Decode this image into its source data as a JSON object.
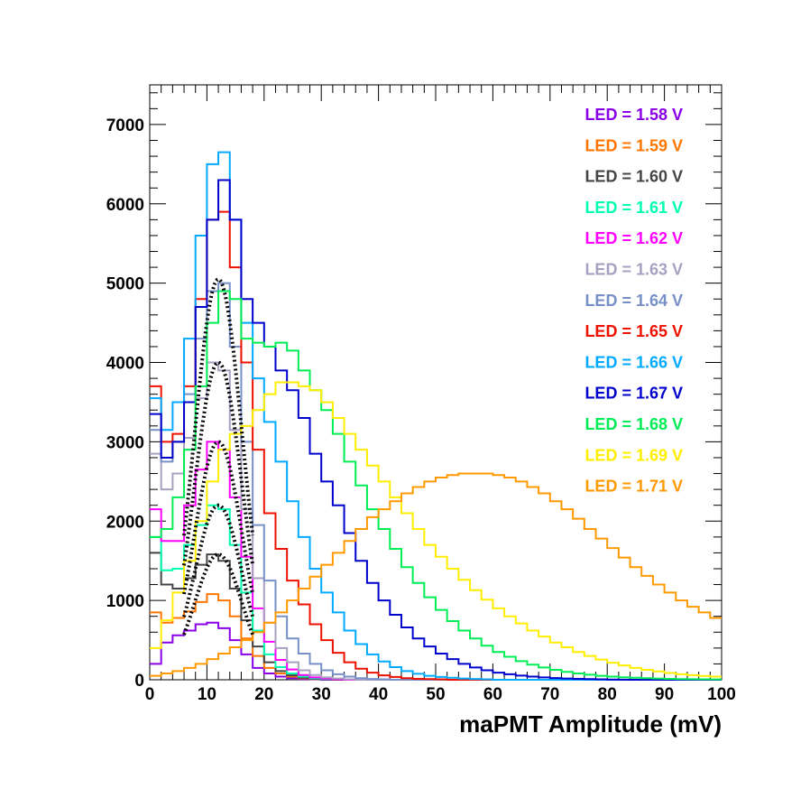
{
  "chart_data": {
    "type": "line",
    "title": "",
    "xlabel": "maPMT Amplitude (mV)",
    "ylabel": "",
    "xlim": [
      0,
      100
    ],
    "ylim": [
      0,
      7500
    ],
    "x_ticks": [
      0,
      10,
      20,
      30,
      40,
      50,
      60,
      70,
      80,
      90,
      100
    ],
    "y_ticks": [
      0,
      1000,
      2000,
      3000,
      4000,
      5000,
      6000,
      7000
    ],
    "grid": false,
    "legend_position": "top-right",
    "x": [
      1,
      3,
      5,
      7,
      9,
      11,
      13,
      15,
      17,
      19,
      21,
      23,
      25,
      27,
      29,
      31,
      33,
      35,
      37,
      39,
      41,
      43,
      45,
      47,
      49,
      51,
      53,
      55,
      57,
      59,
      61,
      63,
      65,
      67,
      69,
      71,
      73,
      75,
      77,
      79,
      81,
      83,
      85,
      87,
      89,
      91,
      93,
      95,
      97,
      99
    ],
    "series": [
      {
        "name": "LED = 1.58 V",
        "color": "#8a00e6",
        "values": [
          200,
          470,
          560,
          620,
          700,
          720,
          650,
          500,
          320,
          150,
          80,
          40,
          20,
          10,
          5,
          0,
          0,
          0,
          0,
          0,
          0,
          0,
          0,
          0,
          0,
          0,
          0,
          0,
          0,
          0,
          0,
          0,
          0,
          0,
          0,
          0,
          0,
          0,
          0,
          0,
          0,
          0,
          0,
          0,
          0,
          0,
          0,
          0,
          0,
          0
        ]
      },
      {
        "name": "LED = 1.59 V",
        "color": "#ff7700",
        "values": [
          850,
          720,
          780,
          860,
          980,
          1080,
          1000,
          800,
          520,
          300,
          150,
          80,
          40,
          20,
          10,
          5,
          0,
          0,
          0,
          0,
          0,
          0,
          0,
          0,
          0,
          0,
          0,
          0,
          0,
          0,
          0,
          0,
          0,
          0,
          0,
          0,
          0,
          0,
          0,
          0,
          0,
          0,
          0,
          0,
          0,
          0,
          0,
          0,
          0,
          0
        ]
      },
      {
        "name": "LED = 1.60 V",
        "color": "#444444",
        "values": [
          1600,
          1200,
          1150,
          1280,
          1450,
          1580,
          1500,
          1150,
          750,
          420,
          220,
          110,
          55,
          25,
          10,
          5,
          0,
          0,
          0,
          0,
          0,
          0,
          0,
          0,
          0,
          0,
          0,
          0,
          0,
          0,
          0,
          0,
          0,
          0,
          0,
          0,
          0,
          0,
          0,
          0,
          0,
          0,
          0,
          0,
          0,
          0,
          0,
          0,
          0,
          0
        ]
      },
      {
        "name": "LED = 1.61 V",
        "color": "#00ffb0",
        "values": [
          1800,
          1380,
          1400,
          1700,
          1950,
          2200,
          2150,
          1700,
          1100,
          620,
          320,
          160,
          80,
          40,
          20,
          10,
          5,
          0,
          0,
          0,
          0,
          0,
          0,
          0,
          0,
          0,
          0,
          0,
          0,
          0,
          0,
          0,
          0,
          0,
          0,
          0,
          0,
          0,
          0,
          0,
          0,
          0,
          0,
          0,
          0,
          0,
          0,
          0,
          0,
          0
        ]
      },
      {
        "name": "LED = 1.62 V",
        "color": "#ff00ff",
        "values": [
          2150,
          1750,
          1750,
          2200,
          2650,
          3000,
          2900,
          2300,
          1550,
          900,
          480,
          250,
          130,
          60,
          30,
          15,
          5,
          0,
          0,
          0,
          0,
          0,
          0,
          0,
          0,
          0,
          0,
          0,
          0,
          0,
          0,
          0,
          0,
          0,
          0,
          0,
          0,
          0,
          0,
          0,
          0,
          0,
          0,
          0,
          0,
          0,
          0,
          0,
          0,
          0
        ]
      },
      {
        "name": "LED = 1.63 V",
        "color": "#a8a0c0",
        "values": [
          2850,
          2400,
          2600,
          3050,
          3550,
          4000,
          3900,
          3150,
          2150,
          1280,
          720,
          400,
          220,
          120,
          60,
          30,
          15,
          5,
          0,
          0,
          0,
          0,
          0,
          0,
          0,
          0,
          0,
          0,
          0,
          0,
          0,
          0,
          0,
          0,
          0,
          0,
          0,
          0,
          0,
          0,
          0,
          0,
          0,
          0,
          0,
          0,
          0,
          0,
          0,
          0
        ]
      },
      {
        "name": "LED = 1.64 V",
        "color": "#7890c8",
        "values": [
          3150,
          2750,
          3000,
          3600,
          4300,
          4900,
          5000,
          4200,
          3000,
          1950,
          1250,
          800,
          520,
          330,
          200,
          120,
          70,
          40,
          20,
          10,
          5,
          0,
          0,
          0,
          0,
          0,
          0,
          0,
          0,
          0,
          0,
          0,
          0,
          0,
          0,
          0,
          0,
          0,
          0,
          0,
          0,
          0,
          0,
          0,
          0,
          0,
          0,
          0,
          0,
          0
        ]
      },
      {
        "name": "LED = 1.65 V",
        "color": "#ee1100",
        "values": [
          3700,
          3000,
          3100,
          3700,
          4800,
          5800,
          5900,
          5200,
          4000,
          2900,
          2100,
          1650,
          1250,
          950,
          700,
          500,
          340,
          220,
          140,
          90,
          55,
          35,
          20,
          12,
          8,
          5,
          0,
          0,
          0,
          0,
          0,
          0,
          0,
          0,
          0,
          0,
          0,
          0,
          0,
          0,
          0,
          0,
          0,
          0,
          0,
          0,
          0,
          0,
          0,
          0
        ]
      },
      {
        "name": "LED = 1.66 V",
        "color": "#00aaff",
        "values": [
          3550,
          3150,
          3500,
          4300,
          5600,
          6500,
          6650,
          5800,
          4500,
          3800,
          3250,
          2750,
          2250,
          1800,
          1400,
          1100,
          850,
          620,
          450,
          320,
          230,
          160,
          110,
          75,
          50,
          35,
          25,
          15,
          10,
          5,
          0,
          0,
          0,
          0,
          0,
          0,
          0,
          0,
          0,
          0,
          0,
          0,
          0,
          0,
          0,
          0,
          0,
          0,
          0,
          0
        ]
      },
      {
        "name": "LED = 1.67 V",
        "color": "#0000cc",
        "values": [
          3350,
          2800,
          3000,
          3500,
          4700,
          5800,
          6300,
          5800,
          4800,
          4500,
          4200,
          3900,
          3650,
          3300,
          2850,
          2500,
          2200,
          1850,
          1500,
          1220,
          1000,
          820,
          660,
          520,
          420,
          330,
          260,
          200,
          155,
          120,
          90,
          70,
          52,
          40,
          30,
          22,
          16,
          12,
          8,
          5,
          3,
          2,
          0,
          0,
          0,
          0,
          0,
          0,
          0,
          0
        ]
      },
      {
        "name": "LED = 1.68 V",
        "color": "#00ee55",
        "values": [
          1800,
          1900,
          2300,
          2900,
          3700,
          4500,
          4900,
          4800,
          4300,
          4250,
          4200,
          4250,
          4150,
          3900,
          3650,
          3400,
          3100,
          2750,
          2450,
          2150,
          1900,
          1650,
          1420,
          1220,
          1040,
          880,
          740,
          620,
          520,
          430,
          350,
          290,
          235,
          190,
          155,
          125,
          100,
          80,
          64,
          50,
          40,
          32,
          25,
          20,
          15,
          12,
          9,
          7,
          5,
          4
        ]
      },
      {
        "name": "LED = 1.69 V",
        "color": "#ffee00",
        "values": [
          400,
          750,
          1100,
          1500,
          2000,
          2500,
          2900,
          3100,
          3200,
          3400,
          3600,
          3750,
          3750,
          3700,
          3650,
          3500,
          3300,
          3100,
          2900,
          2700,
          2500,
          2300,
          2100,
          1900,
          1700,
          1550,
          1400,
          1260,
          1130,
          1010,
          900,
          800,
          710,
          620,
          545,
          470,
          410,
          350,
          300,
          255,
          215,
          180,
          150,
          125,
          105,
          85,
          70,
          58,
          48,
          40
        ]
      },
      {
        "name": "LED = 1.71 V",
        "color": "#ff9900",
        "values": [
          50,
          80,
          110,
          150,
          200,
          260,
          330,
          410,
          500,
          600,
          720,
          850,
          1000,
          1150,
          1300,
          1450,
          1600,
          1750,
          1900,
          2050,
          2150,
          2250,
          2350,
          2430,
          2500,
          2550,
          2580,
          2600,
          2600,
          2600,
          2580,
          2550,
          2500,
          2430,
          2350,
          2250,
          2150,
          2030,
          1900,
          1780,
          1660,
          1540,
          1420,
          1310,
          1200,
          1100,
          1000,
          920,
          850,
          780
        ]
      }
    ],
    "fits": {
      "style": "black dotted",
      "series": [
        "LED = 1.60 V",
        "LED = 1.61 V",
        "LED = 1.62 V",
        "LED = 1.63 V",
        "LED = 1.64 V"
      ],
      "peaks": [
        1580,
        2200,
        3000,
        4000,
        5050
      ],
      "mean": 12,
      "sigma": 4.2,
      "x_range": [
        6,
        18
      ]
    }
  }
}
